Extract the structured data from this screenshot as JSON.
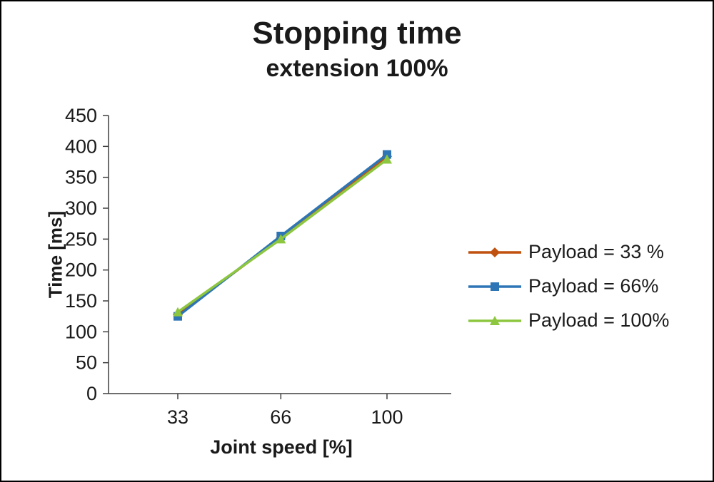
{
  "header": {
    "title": "Stopping time",
    "subtitle": "extension 100%"
  },
  "chart_data": {
    "type": "line",
    "title": "Stopping time",
    "subtitle": "extension 100%",
    "xlabel": "Joint speed [%]",
    "ylabel": "Time [ms]",
    "x": [
      33,
      66,
      100
    ],
    "x_tick_labels": [
      "33",
      "66",
      "100"
    ],
    "ylim": [
      0,
      450
    ],
    "y_tick_step": 50,
    "y_tick_labels": [
      "0",
      "50",
      "100",
      "150",
      "200",
      "250",
      "300",
      "350",
      "400",
      "450"
    ],
    "grid": false,
    "legend_position": "right",
    "series": [
      {
        "name": "Payload = 33 %",
        "color": "#C0510F",
        "marker": "diamond",
        "values": [
          128,
          252,
          384
        ]
      },
      {
        "name": "Payload =  66%",
        "color": "#2E75B6",
        "marker": "square",
        "values": [
          125,
          255,
          387
        ]
      },
      {
        "name": "Payload =  100%",
        "color": "#8DC63F",
        "marker": "triangle",
        "values": [
          132,
          250,
          379
        ]
      }
    ],
    "colors": {
      "axis": "#3f3f3f",
      "text": "#1a1a1a"
    }
  }
}
